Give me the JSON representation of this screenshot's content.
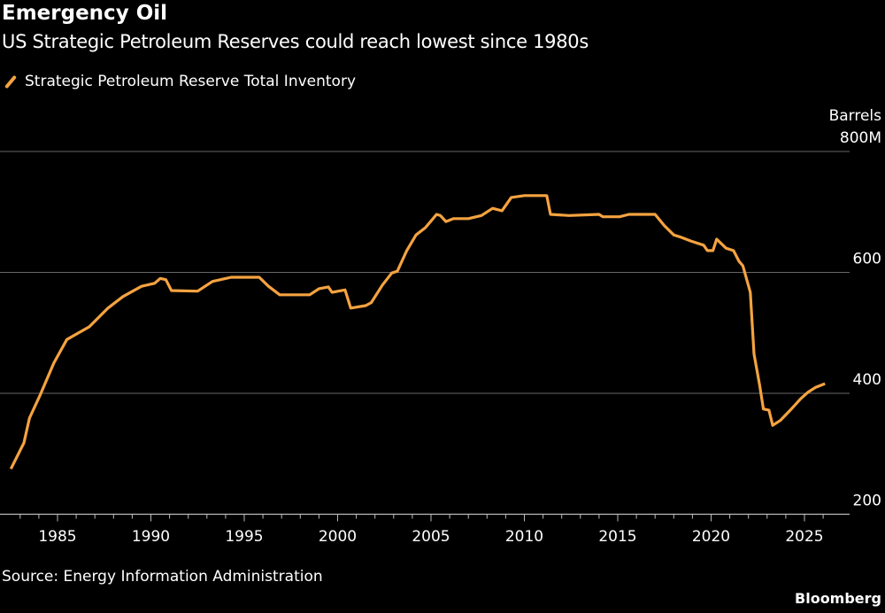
{
  "title": "Emergency Oil",
  "subtitle": "US Strategic Petroleum Reserves could reach lowest since 1980s",
  "source": "Source: Energy Information Administration",
  "brand": "Bloomberg",
  "chart_data": {
    "type": "line",
    "ylabel": "Barrels",
    "ylim": [
      200,
      800
    ],
    "yticks": [
      "800M",
      "600",
      "400",
      "200"
    ],
    "ytick_values": [
      800,
      600,
      400,
      200
    ],
    "xticks": [
      "1985",
      "1990",
      "1995",
      "2000",
      "2005",
      "2010",
      "2015",
      "2020",
      "2025"
    ],
    "xtick_values": [
      1985,
      1990,
      1995,
      2000,
      2005,
      2010,
      2015,
      2020,
      2025
    ],
    "grid": true,
    "legend": "top-left",
    "series": [
      {
        "name": "Strategic Petroleum Reserve Total Inventory",
        "color": "#f5a340",
        "x": [
          1982.5,
          1983.2,
          1983.5,
          1984.05,
          1984.8,
          1985.5,
          1986.7,
          1987.7,
          1988.5,
          1989.5,
          1990.2,
          1990.5,
          1990.8,
          1991.1,
          1992.5,
          1993.3,
          1994.3,
          1995.8,
          1996.3,
          1996.9,
          1998.5,
          1999,
          1999.5,
          1999.7,
          2000.4,
          2000.7,
          2001.5,
          2001.8,
          2002.4,
          2002.9,
          2003.2,
          2003.7,
          2004.2,
          2004.7,
          2005.3,
          2005.5,
          2005.8,
          2006.2,
          2007.0,
          2007.7,
          2008.3,
          2008.8,
          2009.3,
          2010.0,
          2011.2,
          2011.4,
          2012.4,
          2014.0,
          2014.2,
          2015.1,
          2015.6,
          2017,
          2017.5,
          2018,
          2018.4,
          2018.9,
          2019.6,
          2019.8,
          2020.1,
          2020.3,
          2020.8,
          2021.2,
          2021.5,
          2021.7,
          2022.1,
          2022.3,
          2022.6,
          2022.8,
          2023.1,
          2023.3,
          2023.7,
          2024.3,
          2024.8,
          2025.2,
          2025.6,
          2026.1
        ],
        "y": [
          275,
          318,
          359,
          396,
          450,
          489,
          510,
          541,
          560,
          577,
          582,
          590,
          588,
          570,
          569,
          585,
          592,
          592,
          577,
          563,
          563,
          573,
          576,
          567,
          571,
          541,
          545,
          550,
          579,
          599,
          602,
          636,
          662,
          674,
          696,
          694,
          684,
          689,
          689,
          694,
          706,
          702,
          724,
          727,
          727,
          696,
          694,
          696,
          692,
          692,
          696,
          696,
          677,
          662,
          658,
          652,
          645,
          636,
          636,
          655,
          640,
          636,
          618,
          611,
          567,
          465,
          413,
          374,
          372,
          347,
          355,
          374,
          391,
          402,
          410,
          416
        ]
      }
    ]
  }
}
